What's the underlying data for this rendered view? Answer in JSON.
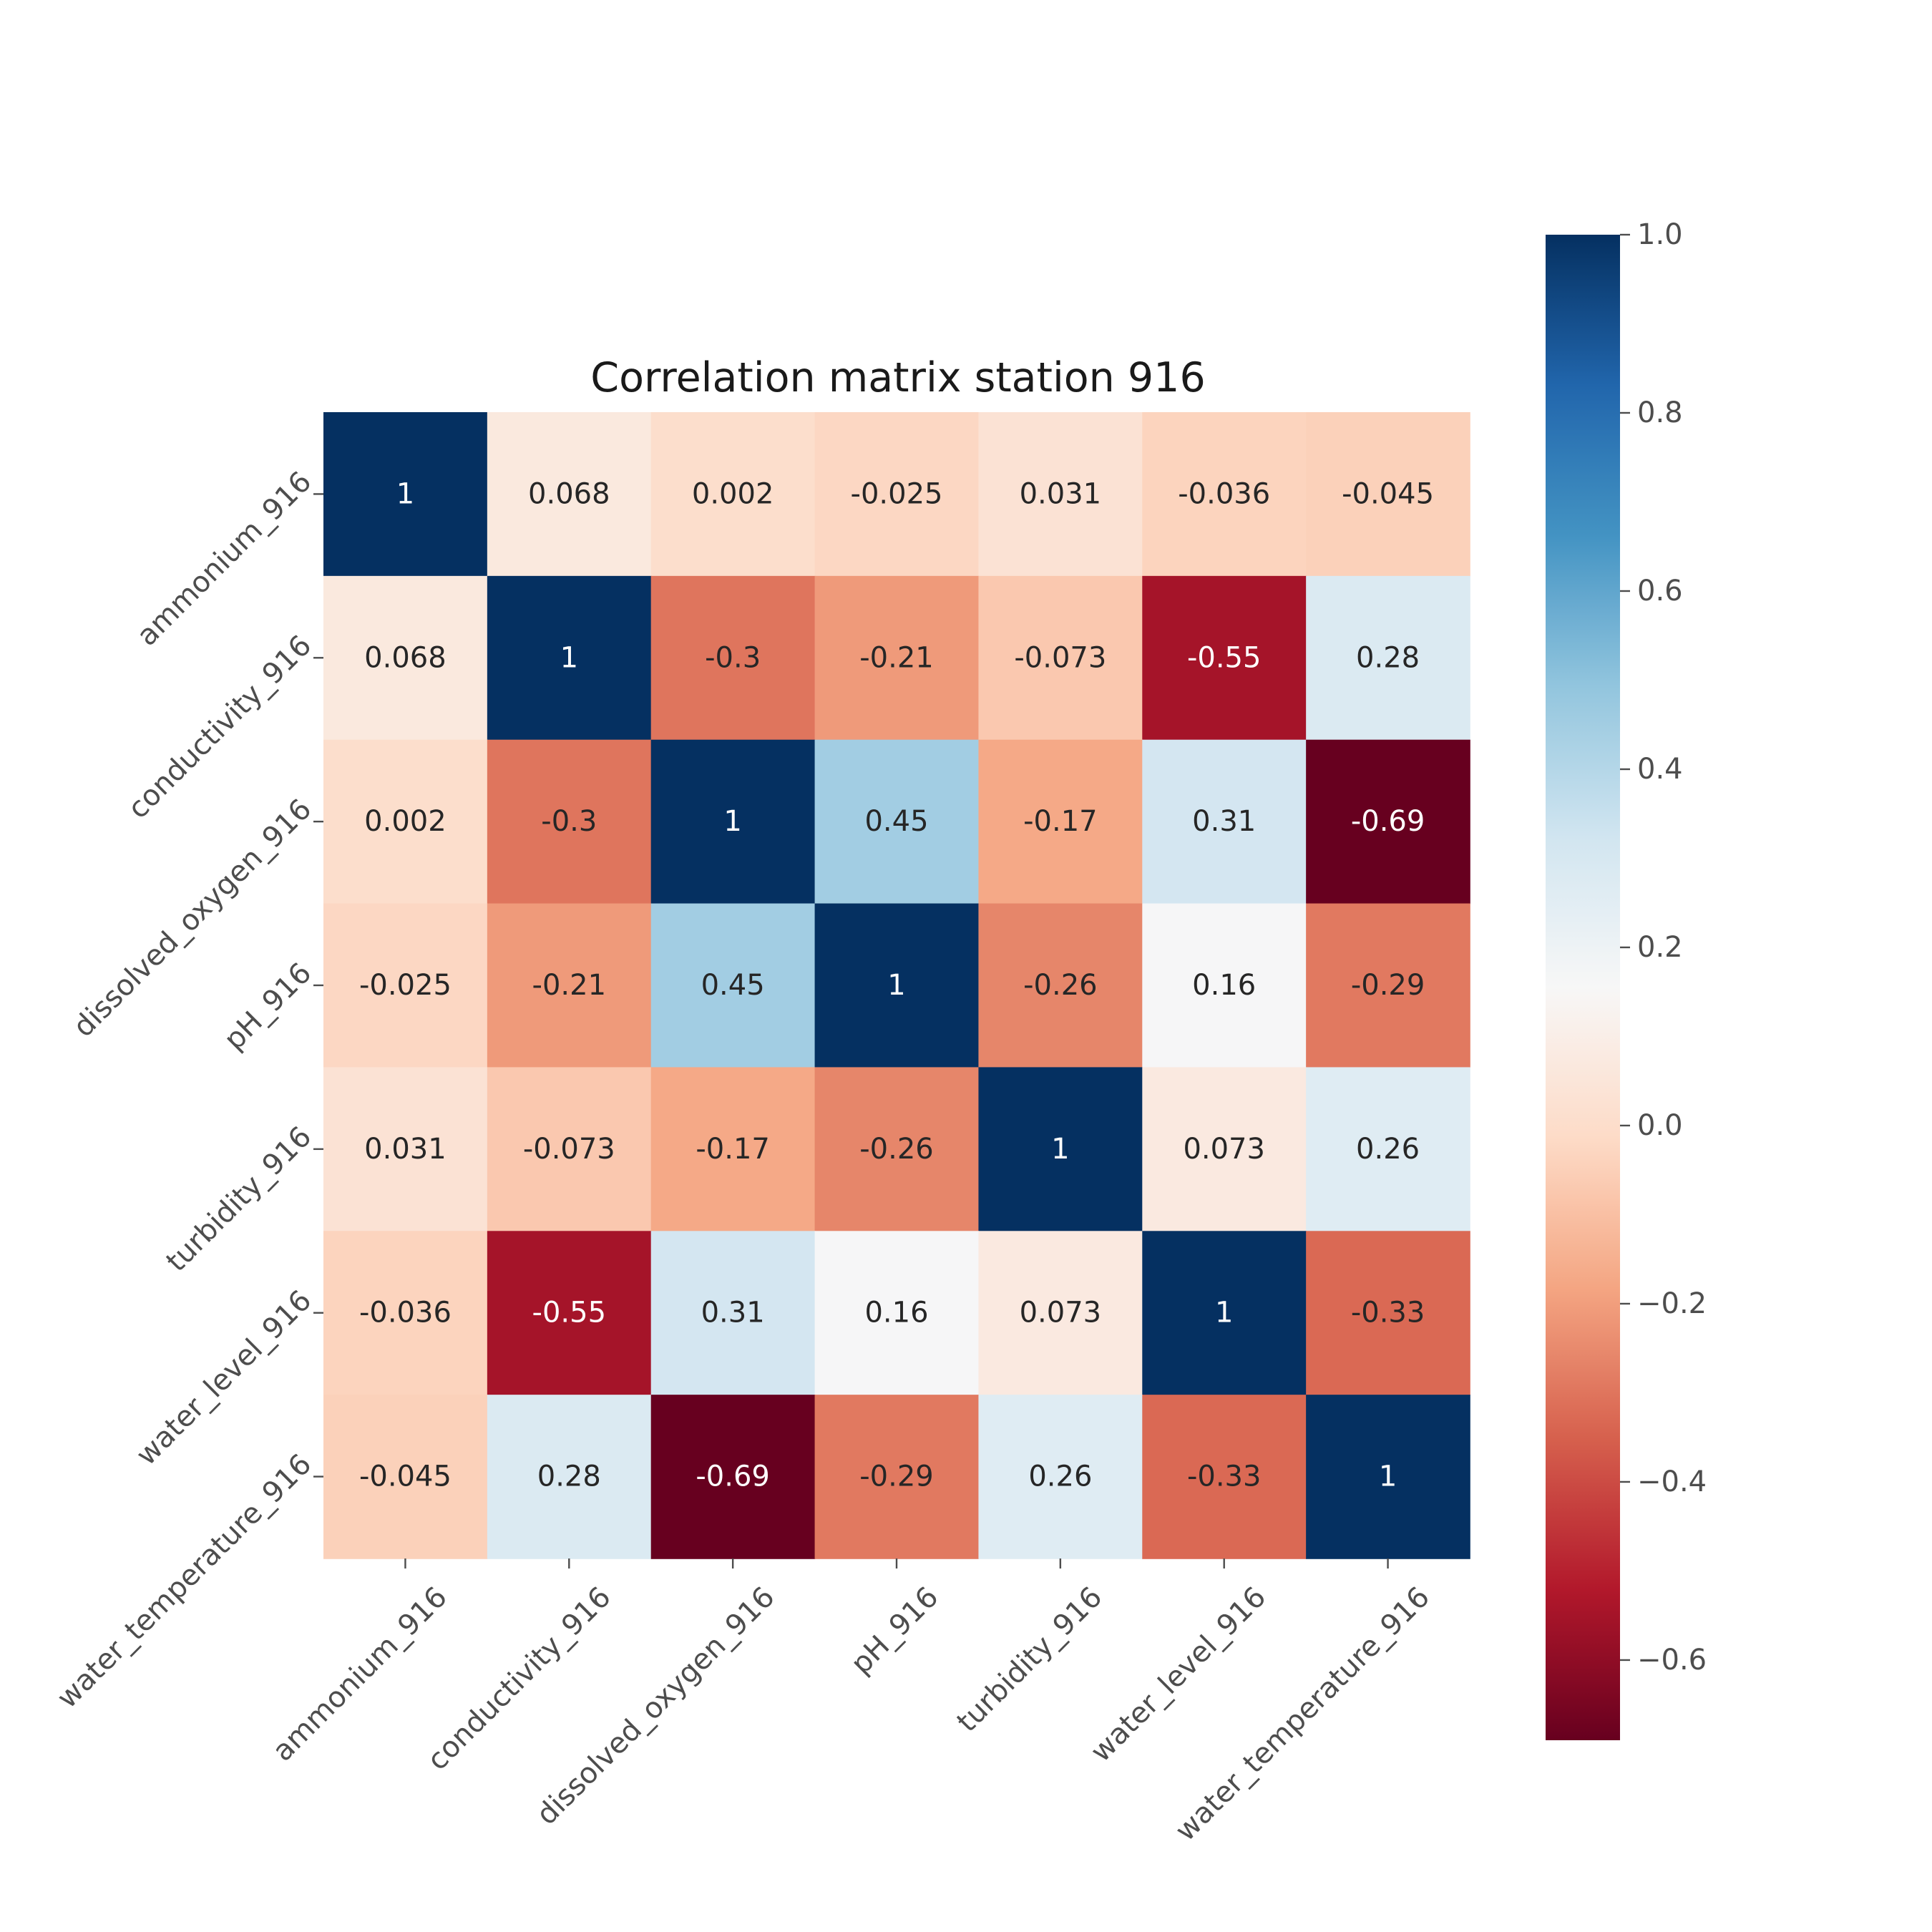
{
  "chart_data": {
    "type": "heatmap",
    "title": "Correlation matrix station 916",
    "xlabel": "",
    "ylabel": "",
    "variables": [
      "ammonium_916",
      "conductivity_916",
      "dissolved_oxygen_916",
      "pH_916",
      "turbidity_916",
      "water_level_916",
      "water_temperature_916"
    ],
    "values": [
      [
        1,
        0.068,
        0.002,
        -0.025,
        0.031,
        -0.036,
        -0.045
      ],
      [
        0.068,
        1,
        -0.3,
        -0.21,
        -0.073,
        -0.55,
        0.28
      ],
      [
        0.002,
        -0.3,
        1,
        0.45,
        -0.17,
        0.31,
        -0.69
      ],
      [
        -0.025,
        -0.21,
        0.45,
        1,
        -0.26,
        0.16,
        -0.29
      ],
      [
        0.031,
        -0.073,
        -0.17,
        -0.26,
        1,
        0.073,
        0.26
      ],
      [
        -0.036,
        -0.55,
        0.31,
        0.16,
        0.073,
        1,
        -0.33
      ],
      [
        -0.045,
        0.28,
        -0.69,
        -0.29,
        0.26,
        -0.33,
        1
      ]
    ],
    "cell_labels": [
      [
        "1",
        "0.068",
        "0.002",
        "-0.025",
        "0.031",
        "-0.036",
        "-0.045"
      ],
      [
        "0.068",
        "1",
        "-0.3",
        "-0.21",
        "-0.073",
        "-0.55",
        "0.28"
      ],
      [
        "0.002",
        "-0.3",
        "1",
        "0.45",
        "-0.17",
        "0.31",
        "-0.69"
      ],
      [
        "-0.025",
        "-0.21",
        "0.45",
        "1",
        "-0.26",
        "0.16",
        "-0.29"
      ],
      [
        "0.031",
        "-0.073",
        "-0.17",
        "-0.26",
        "1",
        "0.073",
        "0.26"
      ],
      [
        "-0.036",
        "-0.55",
        "0.31",
        "0.16",
        "0.073",
        "1",
        "-0.33"
      ],
      [
        "-0.045",
        "0.28",
        "-0.69",
        "-0.29",
        "0.26",
        "-0.33",
        "1"
      ]
    ],
    "colormap": "RdBu",
    "colorbar": {
      "range": [
        -0.69,
        1.0
      ],
      "ticks": [
        1.0,
        0.8,
        0.6,
        0.4,
        0.2,
        0.0,
        -0.2,
        -0.4,
        -0.6
      ],
      "tick_labels": [
        "1.0",
        "0.8",
        "0.6",
        "0.4",
        "0.2",
        "0.0",
        "−0.2",
        "−0.4",
        "−0.6"
      ]
    },
    "grid": false,
    "legend": "colorbar-right"
  }
}
